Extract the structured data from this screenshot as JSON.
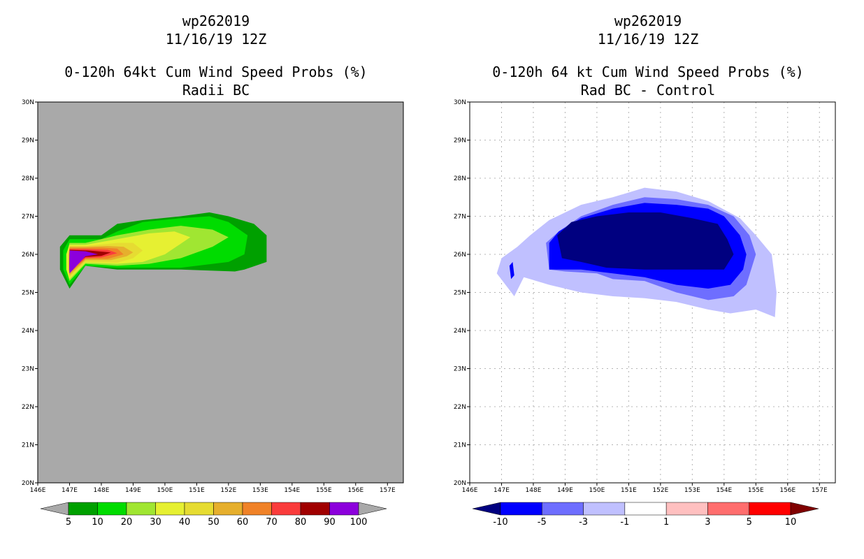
{
  "chart_data": [
    {
      "type": "filled-contour-map",
      "title": [
        "wp262019",
        "11/16/19 12Z",
        "0-120h 64kt Cum Wind Speed Probs (%)",
        "Radii BC"
      ],
      "x_ticks": [
        "146E",
        "147E",
        "148E",
        "149E",
        "150E",
        "151E",
        "152E",
        "153E",
        "154E",
        "155E",
        "156E",
        "157E"
      ],
      "y_ticks": [
        "20N",
        "21N",
        "22N",
        "23N",
        "24N",
        "25N",
        "26N",
        "27N",
        "28N",
        "29N",
        "30N"
      ],
      "xlim": [
        146,
        157.5
      ],
      "ylim": [
        20,
        30
      ],
      "background_color": "#a9a9a9",
      "grid": false,
      "colorbar": {
        "labels": [
          "5",
          "10",
          "20",
          "30",
          "40",
          "50",
          "60",
          "70",
          "80",
          "90",
          "100"
        ],
        "colors": [
          "#00a000",
          "#00dc00",
          "#a0e632",
          "#e6f032",
          "#e6dc32",
          "#e6af2d",
          "#f08228",
          "#fa3c3c",
          "#a00000",
          "#8c00dc"
        ],
        "under_color": "#a9a9a9",
        "over_color": "#a9a9a9"
      },
      "contours": [
        {
          "level": 5,
          "color": "#00a000",
          "polygon": [
            [
              147.0,
              25.1
            ],
            [
              147.5,
              25.7
            ],
            [
              148.5,
              25.6
            ],
            [
              150.5,
              25.6
            ],
            [
              152.2,
              25.55
            ],
            [
              152.5,
              25.6
            ],
            [
              153.2,
              25.8
            ],
            [
              153.2,
              26.5
            ],
            [
              152.8,
              26.8
            ],
            [
              152.0,
              27.0
            ],
            [
              151.4,
              27.1
            ],
            [
              150.5,
              27.0
            ],
            [
              149.3,
              26.9
            ],
            [
              148.5,
              26.8
            ],
            [
              148.0,
              26.5
            ],
            [
              147.0,
              26.5
            ],
            [
              146.7,
              26.2
            ],
            [
              146.7,
              25.6
            ]
          ]
        },
        {
          "level": 10,
          "color": "#00dc00",
          "polygon": [
            [
              147.0,
              25.2
            ],
            [
              147.5,
              25.7
            ],
            [
              148.5,
              25.65
            ],
            [
              150.5,
              25.65
            ],
            [
              152.0,
              25.8
            ],
            [
              152.5,
              26.0
            ],
            [
              152.6,
              26.5
            ],
            [
              152.0,
              26.85
            ],
            [
              151.4,
              27.0
            ],
            [
              150.5,
              26.95
            ],
            [
              149.3,
              26.85
            ],
            [
              148.5,
              26.6
            ],
            [
              148.0,
              26.4
            ],
            [
              147.0,
              26.4
            ],
            [
              146.8,
              26.1
            ],
            [
              146.8,
              25.6
            ]
          ]
        },
        {
          "level": 20,
          "color": "#a0e632",
          "polygon": [
            [
              147.0,
              25.3
            ],
            [
              147.5,
              25.75
            ],
            [
              148.5,
              25.7
            ],
            [
              149.5,
              25.75
            ],
            [
              150.5,
              25.9
            ],
            [
              151.5,
              26.2
            ],
            [
              152.0,
              26.45
            ],
            [
              151.5,
              26.65
            ],
            [
              150.5,
              26.75
            ],
            [
              149.5,
              26.65
            ],
            [
              148.5,
              26.5
            ],
            [
              147.5,
              26.3
            ],
            [
              147.0,
              26.3
            ],
            [
              146.9,
              26.0
            ],
            [
              146.9,
              25.6
            ]
          ]
        },
        {
          "level": 30,
          "color": "#e6f032",
          "polygon": [
            [
              147.0,
              25.35
            ],
            [
              147.5,
              25.78
            ],
            [
              148.5,
              25.75
            ],
            [
              149.3,
              25.8
            ],
            [
              150.0,
              26.0
            ],
            [
              150.8,
              26.45
            ],
            [
              150.3,
              26.6
            ],
            [
              149.5,
              26.55
            ],
            [
              148.5,
              26.4
            ],
            [
              147.5,
              26.25
            ],
            [
              147.0,
              26.25
            ],
            [
              146.9,
              26.0
            ],
            [
              146.9,
              25.6
            ]
          ]
        },
        {
          "level": 40,
          "color": "#e6dc32",
          "polygon": [
            [
              147.0,
              25.4
            ],
            [
              147.5,
              25.8
            ],
            [
              148.5,
              25.78
            ],
            [
              149.0,
              25.9
            ],
            [
              149.3,
              26.1
            ],
            [
              149.0,
              26.3
            ],
            [
              148.5,
              26.3
            ],
            [
              147.5,
              26.22
            ],
            [
              147.0,
              26.22
            ],
            [
              146.95,
              26.0
            ],
            [
              146.95,
              25.6
            ]
          ]
        },
        {
          "level": 50,
          "color": "#e6af2d",
          "polygon": [
            [
              147.0,
              25.45
            ],
            [
              147.5,
              25.85
            ],
            [
              148.3,
              25.85
            ],
            [
              148.8,
              25.95
            ],
            [
              149.0,
              26.05
            ],
            [
              148.7,
              26.2
            ],
            [
              148.2,
              26.22
            ],
            [
              147.5,
              26.2
            ],
            [
              147.0,
              26.2
            ],
            [
              146.98,
              26.0
            ],
            [
              146.98,
              25.6
            ]
          ]
        },
        {
          "level": 60,
          "color": "#f08228",
          "polygon": [
            [
              147.0,
              25.5
            ],
            [
              147.5,
              25.88
            ],
            [
              148.2,
              25.88
            ],
            [
              148.7,
              26.0
            ],
            [
              148.5,
              26.15
            ],
            [
              148.0,
              26.18
            ],
            [
              147.5,
              26.17
            ],
            [
              147.0,
              26.17
            ],
            [
              146.99,
              25.6
            ]
          ]
        },
        {
          "level": 70,
          "color": "#fa3c3c",
          "polygon": [
            [
              147.0,
              25.55
            ],
            [
              147.5,
              25.9
            ],
            [
              148.0,
              25.92
            ],
            [
              148.5,
              26.03
            ],
            [
              148.2,
              26.12
            ],
            [
              147.5,
              26.14
            ],
            [
              147.0,
              26.14
            ],
            [
              146.99,
              25.6
            ]
          ]
        },
        {
          "level": 80,
          "color": "#a00000",
          "polygon": [
            [
              147.0,
              25.6
            ],
            [
              147.5,
              25.93
            ],
            [
              148.0,
              25.96
            ],
            [
              148.3,
              26.05
            ],
            [
              147.6,
              26.1
            ],
            [
              147.0,
              26.12
            ],
            [
              146.99,
              25.65
            ]
          ]
        },
        {
          "level": 90,
          "color": "#8c00dc",
          "polygon": [
            [
              147.0,
              25.5
            ],
            [
              147.5,
              25.95
            ],
            [
              147.9,
              26.0
            ],
            [
              147.5,
              26.08
            ],
            [
              147.0,
              26.1
            ],
            [
              146.99,
              25.6
            ]
          ]
        }
      ]
    },
    {
      "type": "filled-contour-map",
      "title": [
        "wp262019",
        "11/16/19 12Z",
        "0-120h 64 kt Cum Wind Speed Probs (%)",
        "Rad BC - Control"
      ],
      "x_ticks": [
        "146E",
        "147E",
        "148E",
        "149E",
        "150E",
        "151E",
        "152E",
        "153E",
        "154E",
        "155E",
        "156E",
        "157E"
      ],
      "y_ticks": [
        "20N",
        "21N",
        "22N",
        "23N",
        "24N",
        "25N",
        "26N",
        "27N",
        "28N",
        "29N",
        "30N"
      ],
      "xlim": [
        146,
        157.5
      ],
      "ylim": [
        20,
        30
      ],
      "background_color": "#ffffff",
      "grid": true,
      "colorbar": {
        "labels": [
          "-10",
          "-5",
          "-3",
          "-1",
          "1",
          "3",
          "5",
          "10"
        ],
        "colors": [
          "#0000ff",
          "#6e6eff",
          "#c0c0ff",
          "#ffffff",
          "#ffc0c0",
          "#ff6e6e",
          "#ff0000"
        ],
        "under_color": "#000080",
        "over_color": "#800000"
      },
      "contours": [
        {
          "level": -1,
          "color": "#c0c0ff",
          "polygon": [
            [
              147.4,
              24.9
            ],
            [
              147.7,
              25.4
            ],
            [
              148.5,
              25.2
            ],
            [
              149.5,
              25.0
            ],
            [
              150.5,
              24.9
            ],
            [
              151.5,
              24.85
            ],
            [
              152.5,
              24.75
            ],
            [
              153.5,
              24.55
            ],
            [
              154.2,
              24.45
            ],
            [
              155.0,
              24.55
            ],
            [
              155.6,
              24.35
            ],
            [
              155.65,
              25.0
            ],
            [
              155.5,
              26.0
            ],
            [
              155.0,
              26.5
            ],
            [
              154.5,
              26.95
            ],
            [
              153.5,
              27.4
            ],
            [
              152.5,
              27.65
            ],
            [
              151.5,
              27.75
            ],
            [
              150.5,
              27.5
            ],
            [
              149.5,
              27.3
            ],
            [
              148.5,
              26.9
            ],
            [
              147.9,
              26.5
            ],
            [
              147.5,
              26.2
            ],
            [
              147.0,
              25.9
            ],
            [
              146.85,
              25.5
            ]
          ]
        },
        {
          "level": -3,
          "color": "#6e6eff",
          "polygon": [
            [
              148.5,
              25.6
            ],
            [
              149.0,
              25.55
            ],
            [
              150.0,
              25.5
            ],
            [
              150.5,
              25.35
            ],
            [
              151.5,
              25.3
            ],
            [
              152.5,
              25.0
            ],
            [
              153.5,
              24.8
            ],
            [
              154.3,
              24.9
            ],
            [
              154.7,
              25.2
            ],
            [
              155.0,
              26.0
            ],
            [
              154.8,
              26.5
            ],
            [
              154.3,
              27.0
            ],
            [
              153.5,
              27.3
            ],
            [
              152.5,
              27.45
            ],
            [
              151.5,
              27.5
            ],
            [
              150.5,
              27.3
            ],
            [
              149.5,
              27.0
            ],
            [
              148.8,
              26.6
            ],
            [
              148.4,
              26.3
            ]
          ]
        },
        {
          "level": -5,
          "color": "#0000ff",
          "polygon": [
            [
              148.5,
              25.6
            ],
            [
              149.5,
              25.6
            ],
            [
              150.5,
              25.5
            ],
            [
              151.5,
              25.4
            ],
            [
              152.5,
              25.2
            ],
            [
              153.5,
              25.1
            ],
            [
              154.2,
              25.2
            ],
            [
              154.6,
              25.6
            ],
            [
              154.7,
              26.0
            ],
            [
              154.5,
              26.5
            ],
            [
              154.0,
              27.0
            ],
            [
              153.5,
              27.2
            ],
            [
              152.5,
              27.3
            ],
            [
              151.5,
              27.35
            ],
            [
              150.5,
              27.2
            ],
            [
              149.5,
              26.95
            ],
            [
              148.8,
              26.6
            ],
            [
              148.5,
              26.3
            ]
          ]
        },
        {
          "level": -10,
          "color": "#000080",
          "polygon": [
            [
              148.9,
              25.9
            ],
            [
              149.5,
              25.8
            ],
            [
              150.3,
              25.65
            ],
            [
              151.5,
              25.6
            ],
            [
              153.0,
              25.6
            ],
            [
              154.0,
              25.6
            ],
            [
              154.3,
              26.0
            ],
            [
              154.1,
              26.4
            ],
            [
              153.8,
              26.8
            ],
            [
              153.0,
              26.95
            ],
            [
              152.0,
              27.1
            ],
            [
              151.0,
              27.1
            ],
            [
              150.0,
              27.0
            ],
            [
              149.2,
              26.85
            ],
            [
              148.75,
              26.5
            ]
          ]
        },
        {
          "level": -5,
          "color": "#0000ff",
          "polygon": [
            [
              147.3,
              25.35
            ],
            [
              147.4,
              25.45
            ],
            [
              147.35,
              25.8
            ],
            [
              147.25,
              25.7
            ]
          ]
        }
      ]
    }
  ]
}
